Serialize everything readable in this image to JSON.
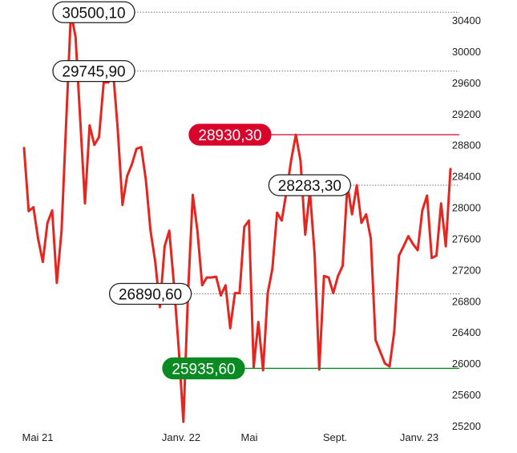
{
  "chart_data": {
    "type": "line",
    "x_labels": [
      "Mai 21",
      "Janv. 22",
      "Mai",
      "Sept.",
      "Janv. 23"
    ],
    "y_ticks": [
      25200,
      25600,
      26000,
      26400,
      26800,
      27200,
      27600,
      28000,
      28400,
      28800,
      29200,
      29600,
      30000,
      30400
    ],
    "ylim": [
      25200,
      30400
    ],
    "grid": false,
    "series_color": "#e3261f",
    "series": [
      {
        "values": [
          28760,
          27950,
          28000,
          27600,
          27300,
          27800,
          27960,
          27030,
          27700,
          29100,
          30500,
          30180,
          29100,
          28050,
          29050,
          28800,
          28900,
          29600,
          29600,
          29745,
          29000,
          28030,
          28400,
          28550,
          28750,
          28770,
          28350,
          27700,
          27300,
          26720,
          27500,
          27700,
          27000,
          26200,
          25250,
          26900,
          28160,
          27700,
          27000,
          27100,
          27100,
          27110,
          26870,
          27000,
          26450,
          26900,
          26900,
          27750,
          27830,
          25950,
          26530,
          25910,
          26900,
          27210,
          27930,
          27830,
          28200,
          28600,
          28930,
          28600,
          27650,
          28210,
          27400,
          25920,
          27120,
          27100,
          26900,
          27120,
          27250,
          28283,
          27910,
          28283,
          27800,
          27910,
          27600,
          26300,
          26150,
          26000,
          25960,
          26400,
          27380,
          27500,
          27630,
          27530,
          27450,
          27960,
          28150,
          27350,
          27380,
          28050,
          27500,
          28490
        ]
      }
    ],
    "callouts": [
      {
        "label": "30500,10",
        "value": 30500.1,
        "style": "neutral"
      },
      {
        "label": "29745,90",
        "value": 29745.9,
        "style": "neutral"
      },
      {
        "label": "28930,30",
        "value": 28930.3,
        "style": "high"
      },
      {
        "label": "28283,30",
        "value": 28283.3,
        "style": "neutral"
      },
      {
        "label": "26890,60",
        "value": 26890.6,
        "style": "neutral"
      },
      {
        "label": "25935,60",
        "value": 25935.6,
        "style": "low"
      }
    ],
    "colors": {
      "high": "#d9042b",
      "low": "#0a8a22",
      "neutral_border": "#222222",
      "neutral_fill": "#ffffff",
      "guide": "#555555"
    }
  }
}
